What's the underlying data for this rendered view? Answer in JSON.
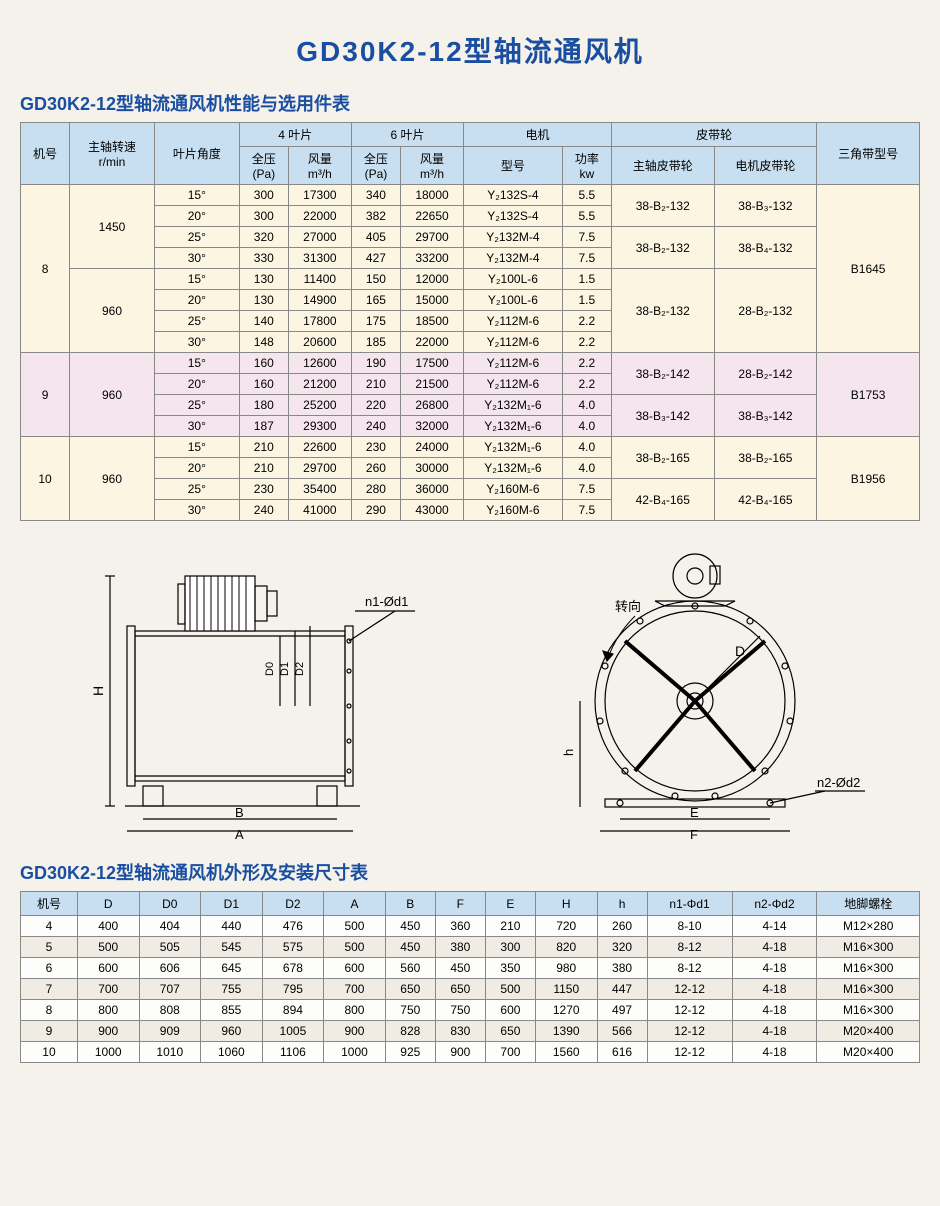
{
  "title": "GD30K2-12型轴流通风机",
  "table1_title": "GD30K2-12型轴流通风机性能与选用件表",
  "table2_title": "GD30K2-12型轴流通风机外形及安装尺寸表",
  "t1_headers": {
    "machine_no": "机号",
    "rpm": "主轴转速\nr/min",
    "blade_angle": "叶片角度",
    "blade4": "4 叶片",
    "blade6": "6 叶片",
    "motor": "电机",
    "pulley": "皮带轮",
    "vbelt": "三角带型号",
    "full_p": "全压\n(Pa)",
    "flow": "风量\nm³/h",
    "model": "型号",
    "power": "功率\nkw",
    "main_pulley": "主轴皮带轮",
    "motor_pulley": "电机皮带轮"
  },
  "t1_rows": [
    {
      "cls": "cream",
      "mn": "8",
      "rpm": "1450",
      "ang": "15°",
      "p4": "300",
      "f4": "17300",
      "p6": "340",
      "f6": "18000",
      "mm": "Y₂132S-4",
      "kw": "5.5",
      "mp": "38-B₂-132",
      "ep": "38-B₃-132",
      "vb": "B1645"
    },
    {
      "cls": "cream",
      "ang": "20°",
      "p4": "300",
      "f4": "22000",
      "p6": "382",
      "f6": "22650",
      "mm": "Y₂132S-4",
      "kw": "5.5"
    },
    {
      "cls": "cream",
      "ang": "25°",
      "p4": "320",
      "f4": "27000",
      "p6": "405",
      "f6": "29700",
      "mm": "Y₂132M-4",
      "kw": "7.5",
      "mp": "38-B₂-132",
      "ep": "38-B₄-132"
    },
    {
      "cls": "cream",
      "ang": "30°",
      "p4": "330",
      "f4": "31300",
      "p6": "427",
      "f6": "33200",
      "mm": "Y₂132M-4",
      "kw": "7.5"
    },
    {
      "cls": "cream",
      "rpm": "960",
      "ang": "15°",
      "p4": "130",
      "f4": "11400",
      "p6": "150",
      "f6": "12000",
      "mm": "Y₂100L-6",
      "kw": "1.5",
      "mp": "38-B₂-132",
      "ep": "28-B₂-132"
    },
    {
      "cls": "cream",
      "ang": "20°",
      "p4": "130",
      "f4": "14900",
      "p6": "165",
      "f6": "15000",
      "mm": "Y₂100L-6",
      "kw": "1.5"
    },
    {
      "cls": "cream",
      "ang": "25°",
      "p4": "140",
      "f4": "17800",
      "p6": "175",
      "f6": "18500",
      "mm": "Y₂112M-6",
      "kw": "2.2"
    },
    {
      "cls": "cream",
      "ang": "30°",
      "p4": "148",
      "f4": "20600",
      "p6": "185",
      "f6": "22000",
      "mm": "Y₂112M-6",
      "kw": "2.2"
    },
    {
      "cls": "pinkish",
      "mn": "9",
      "rpm": "960",
      "ang": "15°",
      "p4": "160",
      "f4": "12600",
      "p6": "190",
      "f6": "17500",
      "mm": "Y₂112M-6",
      "kw": "2.2",
      "mp": "38-B₂-142",
      "ep": "28-B₂-142",
      "vb": "B1753"
    },
    {
      "cls": "pinkish",
      "ang": "20°",
      "p4": "160",
      "f4": "21200",
      "p6": "210",
      "f6": "21500",
      "mm": "Y₂112M-6",
      "kw": "2.2"
    },
    {
      "cls": "pinkish",
      "ang": "25°",
      "p4": "180",
      "f4": "25200",
      "p6": "220",
      "f6": "26800",
      "mm": "Y₂132M₁-6",
      "kw": "4.0",
      "mp": "38-B₃-142",
      "ep": "38-B₃-142"
    },
    {
      "cls": "pinkish",
      "ang": "30°",
      "p4": "187",
      "f4": "29300",
      "p6": "240",
      "f6": "32000",
      "mm": "Y₂132M₁-6",
      "kw": "4.0"
    },
    {
      "cls": "cream",
      "mn": "10",
      "rpm": "960",
      "ang": "15°",
      "p4": "210",
      "f4": "22600",
      "p6": "230",
      "f6": "24000",
      "mm": "Y₂132M₁-6",
      "kw": "4.0",
      "mp": "38-B₂-165",
      "ep": "38-B₂-165",
      "vb": "B1956"
    },
    {
      "cls": "cream",
      "ang": "20°",
      "p4": "210",
      "f4": "29700",
      "p6": "260",
      "f6": "30000",
      "mm": "Y₂132M₁-6",
      "kw": "4.0"
    },
    {
      "cls": "cream",
      "ang": "25°",
      "p4": "230",
      "f4": "35400",
      "p6": "280",
      "f6": "36000",
      "mm": "Y₂160M-6",
      "kw": "7.5",
      "mp": "42-B₄-165",
      "ep": "42-B₄-165"
    },
    {
      "cls": "cream",
      "ang": "30°",
      "p4": "240",
      "f4": "41000",
      "p6": "290",
      "f6": "43000",
      "mm": "Y₂160M-6",
      "kw": "7.5"
    }
  ],
  "t2_headers": [
    "机号",
    "D",
    "D0",
    "D1",
    "D2",
    "A",
    "B",
    "F",
    "E",
    "H",
    "h",
    "n1-Φd1",
    "n2-Φd2",
    "地脚螺栓"
  ],
  "t2_rows": [
    [
      "4",
      "400",
      "404",
      "440",
      "476",
      "500",
      "450",
      "360",
      "210",
      "720",
      "260",
      "8-10",
      "4-14",
      "M12×280"
    ],
    [
      "5",
      "500",
      "505",
      "545",
      "575",
      "500",
      "450",
      "380",
      "300",
      "820",
      "320",
      "8-12",
      "4-18",
      "M16×300"
    ],
    [
      "6",
      "600",
      "606",
      "645",
      "678",
      "600",
      "560",
      "450",
      "350",
      "980",
      "380",
      "8-12",
      "4-18",
      "M16×300"
    ],
    [
      "7",
      "700",
      "707",
      "755",
      "795",
      "700",
      "650",
      "650",
      "500",
      "1150",
      "447",
      "12-12",
      "4-18",
      "M16×300"
    ],
    [
      "8",
      "800",
      "808",
      "855",
      "894",
      "800",
      "750",
      "750",
      "600",
      "1270",
      "497",
      "12-12",
      "4-18",
      "M16×300"
    ],
    [
      "9",
      "900",
      "909",
      "960",
      "1005",
      "900",
      "828",
      "830",
      "650",
      "1390",
      "566",
      "12-12",
      "4-18",
      "M20×400"
    ],
    [
      "10",
      "1000",
      "1010",
      "1060",
      "1106",
      "1000",
      "925",
      "900",
      "700",
      "1560",
      "616",
      "12-12",
      "4-18",
      "M20×400"
    ]
  ],
  "diagram_labels": {
    "n1d1": "n1-Ød1",
    "n2d2": "n2-Ød2",
    "rotation": "转向",
    "H": "H",
    "B": "B",
    "A": "A",
    "D0": "D0",
    "D1": "D1",
    "D2": "D2",
    "D": "D",
    "h": "h",
    "E": "E",
    "F": "F"
  }
}
